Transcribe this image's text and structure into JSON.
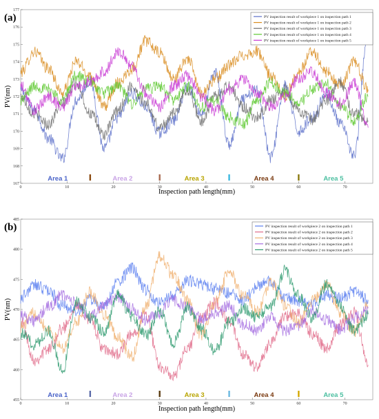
{
  "chart_data": [
    {
      "type": "line",
      "panel_label": "(a)",
      "xlabel": "Inspection path length(mm)",
      "ylabel": "PV(nm)",
      "xlim": [
        0,
        76
      ],
      "ylim": [
        167,
        177
      ],
      "xticks": [
        0,
        10,
        20,
        30,
        40,
        50,
        60,
        70
      ],
      "yticks": [
        167,
        168,
        169,
        170,
        171,
        172,
        173,
        174,
        175,
        176,
        177
      ],
      "legend_position": "top-right",
      "series": [
        {
          "name": "PV inspection result of workpiece 1 on inspection path 1",
          "color": "#5b6fc9",
          "x": [
            0,
            3,
            6,
            9,
            12,
            15,
            18,
            21,
            24,
            27,
            30,
            33,
            36,
            39,
            42,
            45,
            48,
            51,
            54,
            57,
            60,
            63,
            66,
            69,
            72,
            75
          ],
          "values": [
            172.3,
            171.2,
            169.6,
            168.4,
            171.8,
            172.9,
            169.0,
            170.8,
            172.2,
            171.4,
            169.9,
            170.6,
            172.6,
            171.0,
            173.4,
            169.2,
            171.8,
            172.4,
            168.5,
            172.6,
            170.0,
            170.8,
            172.2,
            170.4,
            168.6,
            175.8
          ]
        },
        {
          "name": "PV inspection result of workpiece 1 on inspection path 2",
          "color": "#d98c1f",
          "x": [
            0,
            3,
            6,
            9,
            12,
            15,
            18,
            21,
            24,
            27,
            30,
            33,
            36,
            39,
            42,
            45,
            48,
            51,
            54,
            57,
            60,
            63,
            66,
            69,
            72,
            75
          ],
          "values": [
            173.4,
            174.6,
            173.6,
            172.2,
            174.0,
            173.2,
            171.4,
            172.8,
            173.6,
            175.2,
            174.5,
            173.0,
            174.2,
            172.2,
            173.0,
            173.8,
            174.4,
            174.6,
            173.2,
            172.0,
            173.4,
            174.6,
            173.4,
            172.6,
            174.0,
            172.4
          ]
        },
        {
          "name": "PV inspection result of workpiece 1 on inspection path 3",
          "color": "#6e6e6e",
          "x": [
            0,
            3,
            6,
            9,
            12,
            15,
            18,
            21,
            24,
            27,
            30,
            33,
            36,
            39,
            42,
            45,
            48,
            51,
            54,
            57,
            60,
            63,
            66,
            69,
            72,
            75
          ],
          "values": [
            172.0,
            171.0,
            170.4,
            171.6,
            172.8,
            171.0,
            169.8,
            171.2,
            172.6,
            171.6,
            170.2,
            171.0,
            172.4,
            170.6,
            172.0,
            172.6,
            171.4,
            170.8,
            171.8,
            172.4,
            171.2,
            170.6,
            171.8,
            172.8,
            171.0,
            170.6
          ]
        },
        {
          "name": "PV inspection result of workpiece 1 on inspection path 4",
          "color": "#5cc82e",
          "x": [
            0,
            3,
            6,
            9,
            12,
            15,
            18,
            21,
            24,
            27,
            30,
            33,
            36,
            39,
            42,
            45,
            48,
            51,
            54,
            57,
            60,
            63,
            66,
            69,
            72,
            75
          ],
          "values": [
            171.8,
            172.6,
            172.4,
            171.8,
            173.2,
            172.8,
            172.2,
            172.6,
            171.6,
            172.4,
            172.6,
            171.8,
            172.6,
            171.4,
            171.8,
            170.8,
            170.4,
            171.8,
            172.8,
            172.2,
            171.6,
            172.4,
            172.8,
            171.4,
            170.6,
            172.0
          ]
        },
        {
          "name": "PV inspection result of workpiece 1 on inspection path 5",
          "color": "#c838d4",
          "x": [
            0,
            3,
            6,
            9,
            12,
            15,
            18,
            21,
            24,
            27,
            30,
            33,
            36,
            39,
            42,
            45,
            48,
            51,
            54,
            57,
            60,
            63,
            66,
            69,
            72,
            75
          ],
          "values": [
            172.6,
            171.2,
            172.0,
            171.4,
            172.6,
            172.8,
            173.4,
            174.6,
            173.8,
            172.2,
            171.4,
            172.6,
            173.2,
            172.0,
            171.2,
            172.4,
            173.0,
            172.2,
            171.4,
            172.0,
            173.0,
            173.4,
            172.2,
            171.6,
            172.8,
            170.2
          ]
        }
      ],
      "areas": [
        {
          "label": "Area 1",
          "color": "#4a63c8",
          "center": 8
        },
        {
          "label": "Area 2",
          "color": "#c9a4e6",
          "center": 22
        },
        {
          "label": "Area 3",
          "color": "#b8a400",
          "center": 37.5
        },
        {
          "label": "Area 4",
          "color": "#7a3a10",
          "center": 52.5
        },
        {
          "label": "Area 5",
          "color": "#4bbfa0",
          "center": 67.5
        }
      ],
      "boundaries": [
        {
          "x": 15,
          "color": "#8b4a10"
        },
        {
          "x": 30,
          "color": "#a86a50"
        },
        {
          "x": 45,
          "color": "#3bb8e0"
        },
        {
          "x": 60,
          "color": "#8b7a10"
        }
      ]
    },
    {
      "type": "line",
      "panel_label": "(b)",
      "xlabel": "Inspection path length(mm)",
      "ylabel": "PV(nm)",
      "xlim": [
        0,
        76
      ],
      "ylim": [
        455,
        485
      ],
      "xticks": [
        0,
        10,
        20,
        30,
        40,
        50,
        60,
        70
      ],
      "yticks": [
        455,
        460,
        465,
        470,
        475,
        480,
        485
      ],
      "legend_position": "top-right",
      "series": [
        {
          "name": "PV inspection result of workpiece 2 on inspection path 1",
          "color": "#5b7ff0",
          "x": [
            0,
            3,
            6,
            9,
            12,
            15,
            18,
            21,
            24,
            27,
            30,
            33,
            36,
            39,
            42,
            45,
            48,
            51,
            54,
            57,
            60,
            63,
            66,
            69,
            72,
            75
          ],
          "values": [
            472.0,
            474.0,
            473.2,
            470.6,
            469.8,
            471.6,
            470.4,
            474.6,
            476.8,
            473.2,
            471.0,
            472.4,
            474.8,
            474.2,
            473.4,
            472.6,
            471.4,
            473.8,
            474.6,
            472.0,
            471.2,
            470.8,
            472.4,
            471.8,
            473.0,
            471.6
          ]
        },
        {
          "name": "PV inspection result of workpiece 2 on inspection path 2",
          "color": "#e06b8a",
          "x": [
            0,
            3,
            6,
            9,
            12,
            15,
            18,
            21,
            24,
            27,
            30,
            33,
            36,
            39,
            42,
            45,
            48,
            51,
            54,
            57,
            60,
            63,
            66,
            69,
            72,
            75
          ],
          "values": [
            468.0,
            461.6,
            463.4,
            466.8,
            470.6,
            468.4,
            463.2,
            462.6,
            465.8,
            469.2,
            460.6,
            458.8,
            463.4,
            468.6,
            471.2,
            468.0,
            462.4,
            460.4,
            464.6,
            468.8,
            469.2,
            466.0,
            463.6,
            467.4,
            469.6,
            460.8
          ]
        },
        {
          "name": "PV inspection result of workpiece 2 on inspection path 3",
          "color": "#f0b070",
          "x": [
            0,
            3,
            6,
            9,
            12,
            15,
            18,
            21,
            24,
            27,
            30,
            33,
            36,
            39,
            42,
            45,
            48,
            51,
            54,
            57,
            60,
            63,
            66,
            69,
            72,
            75
          ],
          "values": [
            467.0,
            469.4,
            466.8,
            463.6,
            467.8,
            472.8,
            469.2,
            465.4,
            462.0,
            470.4,
            479.0,
            475.6,
            471.4,
            465.8,
            471.2,
            476.2,
            472.4,
            469.6,
            474.4,
            470.8,
            467.8,
            471.4,
            474.2,
            469.6,
            466.4,
            470.6
          ]
        },
        {
          "name": "PV inspection result of workpiece 2 on inspection path 4",
          "color": "#a56de0",
          "x": [
            0,
            3,
            6,
            9,
            12,
            15,
            18,
            21,
            24,
            27,
            30,
            33,
            36,
            39,
            42,
            45,
            48,
            51,
            54,
            57,
            60,
            63,
            66,
            69,
            72,
            75
          ],
          "values": [
            469.2,
            468.0,
            470.4,
            472.4,
            471.0,
            468.6,
            470.8,
            472.2,
            470.0,
            468.2,
            469.4,
            471.6,
            470.2,
            468.4,
            469.4,
            470.6,
            467.6,
            466.4,
            468.8,
            466.4,
            467.2,
            469.8,
            468.2,
            466.6,
            468.6,
            470.2
          ]
        },
        {
          "name": "PV inspection result of workpiece 2 on inspection path 5",
          "color": "#2e9a6e",
          "x": [
            0,
            3,
            6,
            9,
            12,
            15,
            18,
            21,
            24,
            27,
            30,
            33,
            36,
            39,
            42,
            45,
            48,
            51,
            54,
            57,
            60,
            63,
            66,
            69,
            72,
            75
          ],
          "values": [
            466.0,
            464.2,
            466.4,
            459.8,
            471.2,
            468.8,
            466.2,
            472.4,
            468.8,
            465.6,
            469.8,
            464.4,
            470.4,
            466.8,
            463.2,
            467.8,
            470.4,
            468.6,
            470.6,
            476.4,
            472.2,
            468.4,
            474.2,
            470.6,
            466.4,
            469.2
          ]
        }
      ],
      "areas": [
        {
          "label": "Area 1",
          "color": "#4a63c8",
          "center": 8
        },
        {
          "label": "Area 2",
          "color": "#c9a4e6",
          "center": 22
        },
        {
          "label": "Area 3",
          "color": "#b8a400",
          "center": 37.5
        },
        {
          "label": "Area 4",
          "color": "#7a3a10",
          "center": 52.5
        },
        {
          "label": "Area 5",
          "color": "#4bbfa0",
          "center": 67.5
        }
      ],
      "boundaries": [
        {
          "x": 15,
          "color": "#5a6aa8"
        },
        {
          "x": 30,
          "color": "#5a3a10"
        },
        {
          "x": 45,
          "color": "#6ab8e0"
        },
        {
          "x": 60,
          "color": "#d4a800"
        }
      ]
    }
  ]
}
